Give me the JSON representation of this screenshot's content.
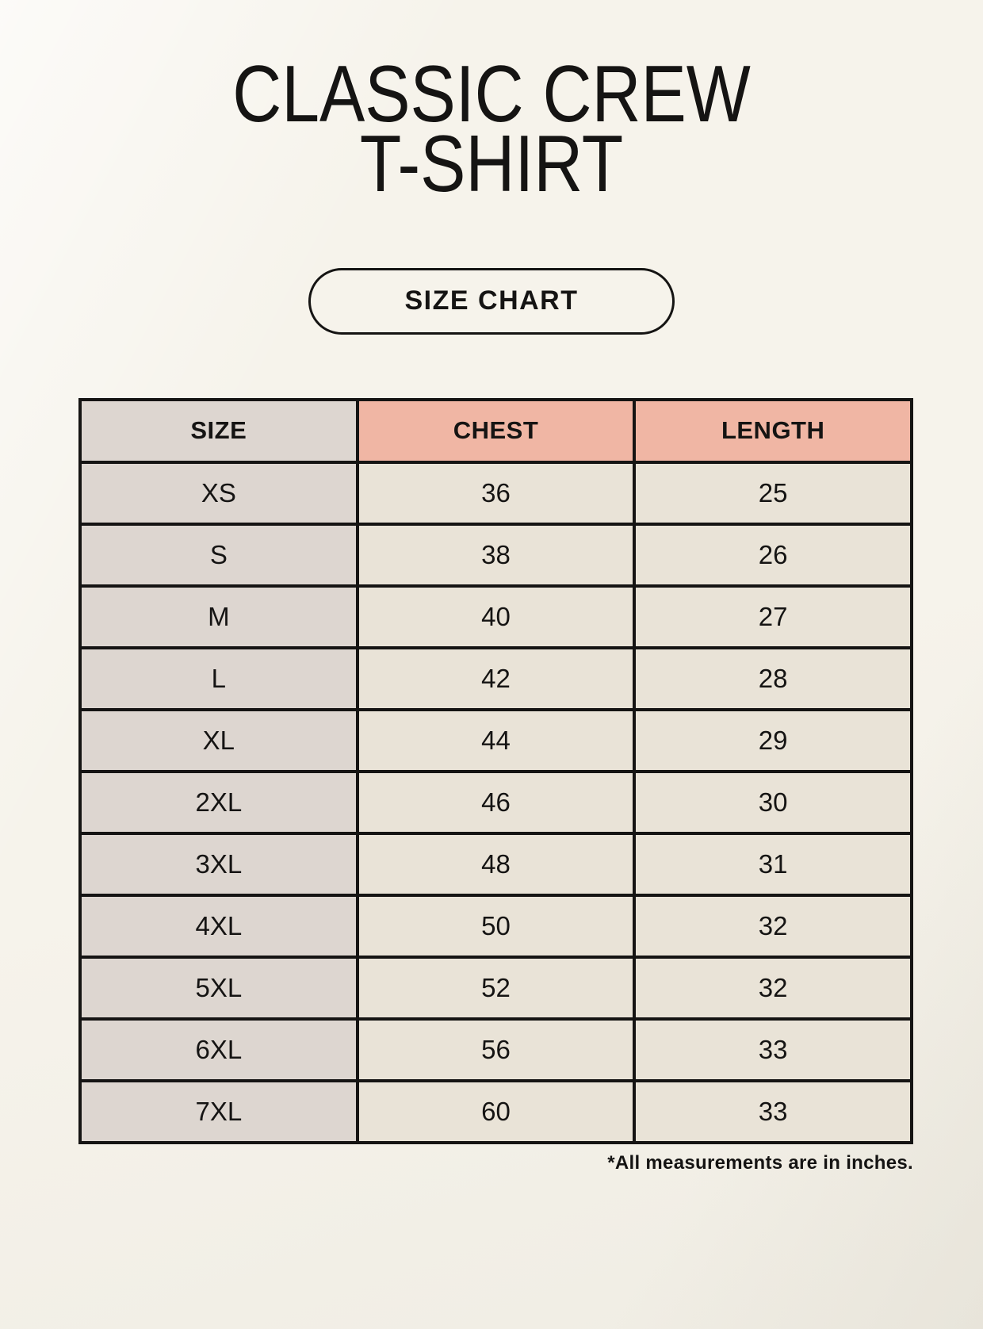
{
  "header": {
    "title_line1": "CLASSIC CREW",
    "title_line2": "T-SHIRT",
    "size_chart_button": "SIZE CHART"
  },
  "footer": {
    "note": "*All measurements are in inches."
  },
  "colors": {
    "background": "#f6f3eb",
    "header_accent": "#f0b6a4",
    "size_column": "#ddd6d0",
    "data_cell": "#e9e3d7",
    "text_and_border": "#151413"
  },
  "chart_data": {
    "type": "table",
    "title": "CLASSIC CREW T-SHIRT",
    "units": "inches",
    "columns": [
      "SIZE",
      "CHEST",
      "LENGTH"
    ],
    "rows": [
      [
        "XS",
        "36",
        "25"
      ],
      [
        "S",
        "38",
        "26"
      ],
      [
        "M",
        "40",
        "27"
      ],
      [
        "L",
        "42",
        "28"
      ],
      [
        "XL",
        "44",
        "29"
      ],
      [
        "2XL",
        "46",
        "30"
      ],
      [
        "3XL",
        "48",
        "31"
      ],
      [
        "4XL",
        "50",
        "32"
      ],
      [
        "5XL",
        "52",
        "32"
      ],
      [
        "6XL",
        "56",
        "33"
      ],
      [
        "7XL",
        "60",
        "33"
      ]
    ]
  }
}
